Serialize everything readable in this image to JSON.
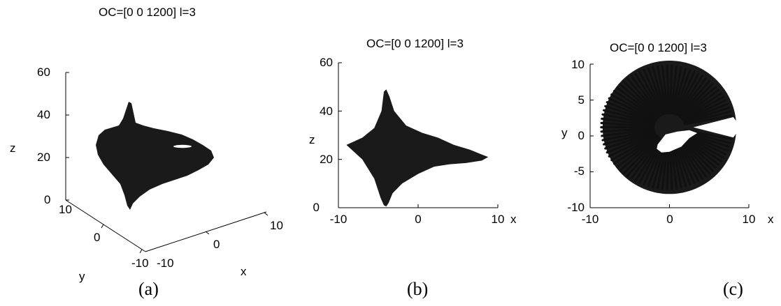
{
  "figure": {
    "panels": [
      {
        "id": "a",
        "title": "OC=[0 0 1200] l=3",
        "caption": "(a)",
        "view": "3d",
        "xlabel": "x",
        "ylabel": "y",
        "zlabel": "z",
        "z_ticks": [
          "0",
          "20",
          "40",
          "60"
        ],
        "x_ticks": [
          "-10",
          "0",
          "10"
        ],
        "y_ticks": [
          "10",
          "0",
          "-10"
        ]
      },
      {
        "id": "b",
        "title": "OC=[0 0 1200] l=3",
        "caption": "(b)",
        "view": "x-z",
        "xlabel": "x",
        "ylabel": "z",
        "x_ticks": [
          "-10",
          "0",
          "10"
        ],
        "y_ticks": [
          "0",
          "20",
          "40",
          "60"
        ]
      },
      {
        "id": "c",
        "title": "OC=[0 0 1200] l=3",
        "caption": "(c)",
        "view": "x-y",
        "xlabel": "x",
        "ylabel": "y",
        "x_ticks": [
          "-10",
          "0",
          "10"
        ],
        "y_ticks": [
          "-10",
          "-5",
          "0",
          "5",
          "10"
        ]
      }
    ]
  },
  "chart_data": [
    {
      "type": "scatter",
      "title": "OC=[0 0 1200] l=3",
      "view": "3d",
      "xlabel": "x",
      "ylabel": "y",
      "zlabel": "z",
      "xlim": [
        -10,
        10
      ],
      "ylim": [
        -10,
        10
      ],
      "zlim": [
        0,
        60
      ],
      "grid": false,
      "color": "#1a1a1a",
      "description_series": [
        {
          "x": [
            -9,
            -4,
            -4,
            3,
            8,
            8
          ],
          "y": [
            0,
            0,
            0,
            0,
            0,
            0
          ],
          "z": [
            26,
            47,
            1,
            25,
            21,
            25
          ]
        }
      ]
    },
    {
      "type": "scatter",
      "title": "OC=[0 0 1200] l=3",
      "view": "x-z",
      "xlabel": "x",
      "ylabel": "z",
      "xlim": [
        -10,
        10
      ],
      "ylim": [
        0,
        60
      ],
      "grid": false,
      "color": "#1a1a1a",
      "outline": {
        "x": [
          -9,
          -7,
          -5.5,
          -4.6,
          -4.3,
          -4.0,
          -3.6,
          -3.0,
          -1.5,
          0.5,
          2.5,
          4.5,
          6.5,
          8.0,
          8.8,
          8.0,
          6.0,
          4.0,
          2.0,
          0.0,
          -2.0,
          -3.2,
          -3.7,
          -4.0,
          -4.3,
          -4.7,
          -5.5,
          -7.0,
          -9.0
        ],
        "z": [
          26,
          29,
          33,
          40,
          48,
          49,
          46,
          40,
          34,
          31,
          29,
          26,
          24,
          22,
          21,
          19.5,
          18.5,
          18,
          17,
          14,
          10,
          6,
          2,
          0.5,
          1,
          4,
          12,
          20,
          26
        ]
      }
    },
    {
      "type": "scatter",
      "title": "OC=[0 0 1200] l=3",
      "view": "x-y",
      "xlabel": "x",
      "ylabel": "y",
      "xlim": [
        -10,
        10
      ],
      "ylim": [
        -10,
        10
      ],
      "grid": false,
      "color": "#1a1a1a",
      "spiral": {
        "center": [
          0,
          1.2
        ],
        "outer_radius": 8.6,
        "inner_radius": 2.0,
        "gap_angle_start_deg": -10,
        "gap_angle_end_deg": 10
      },
      "hole": {
        "x": [
          -1.5,
          -0.5,
          1.0,
          2.5,
          3.5,
          2.5,
          1.5,
          0.0,
          -1.0,
          -1.6
        ],
        "y": [
          -1.2,
          0.2,
          0.6,
          0.8,
          0.4,
          -0.3,
          -1.5,
          -2.2,
          -2.3,
          -1.8
        ]
      }
    }
  ]
}
